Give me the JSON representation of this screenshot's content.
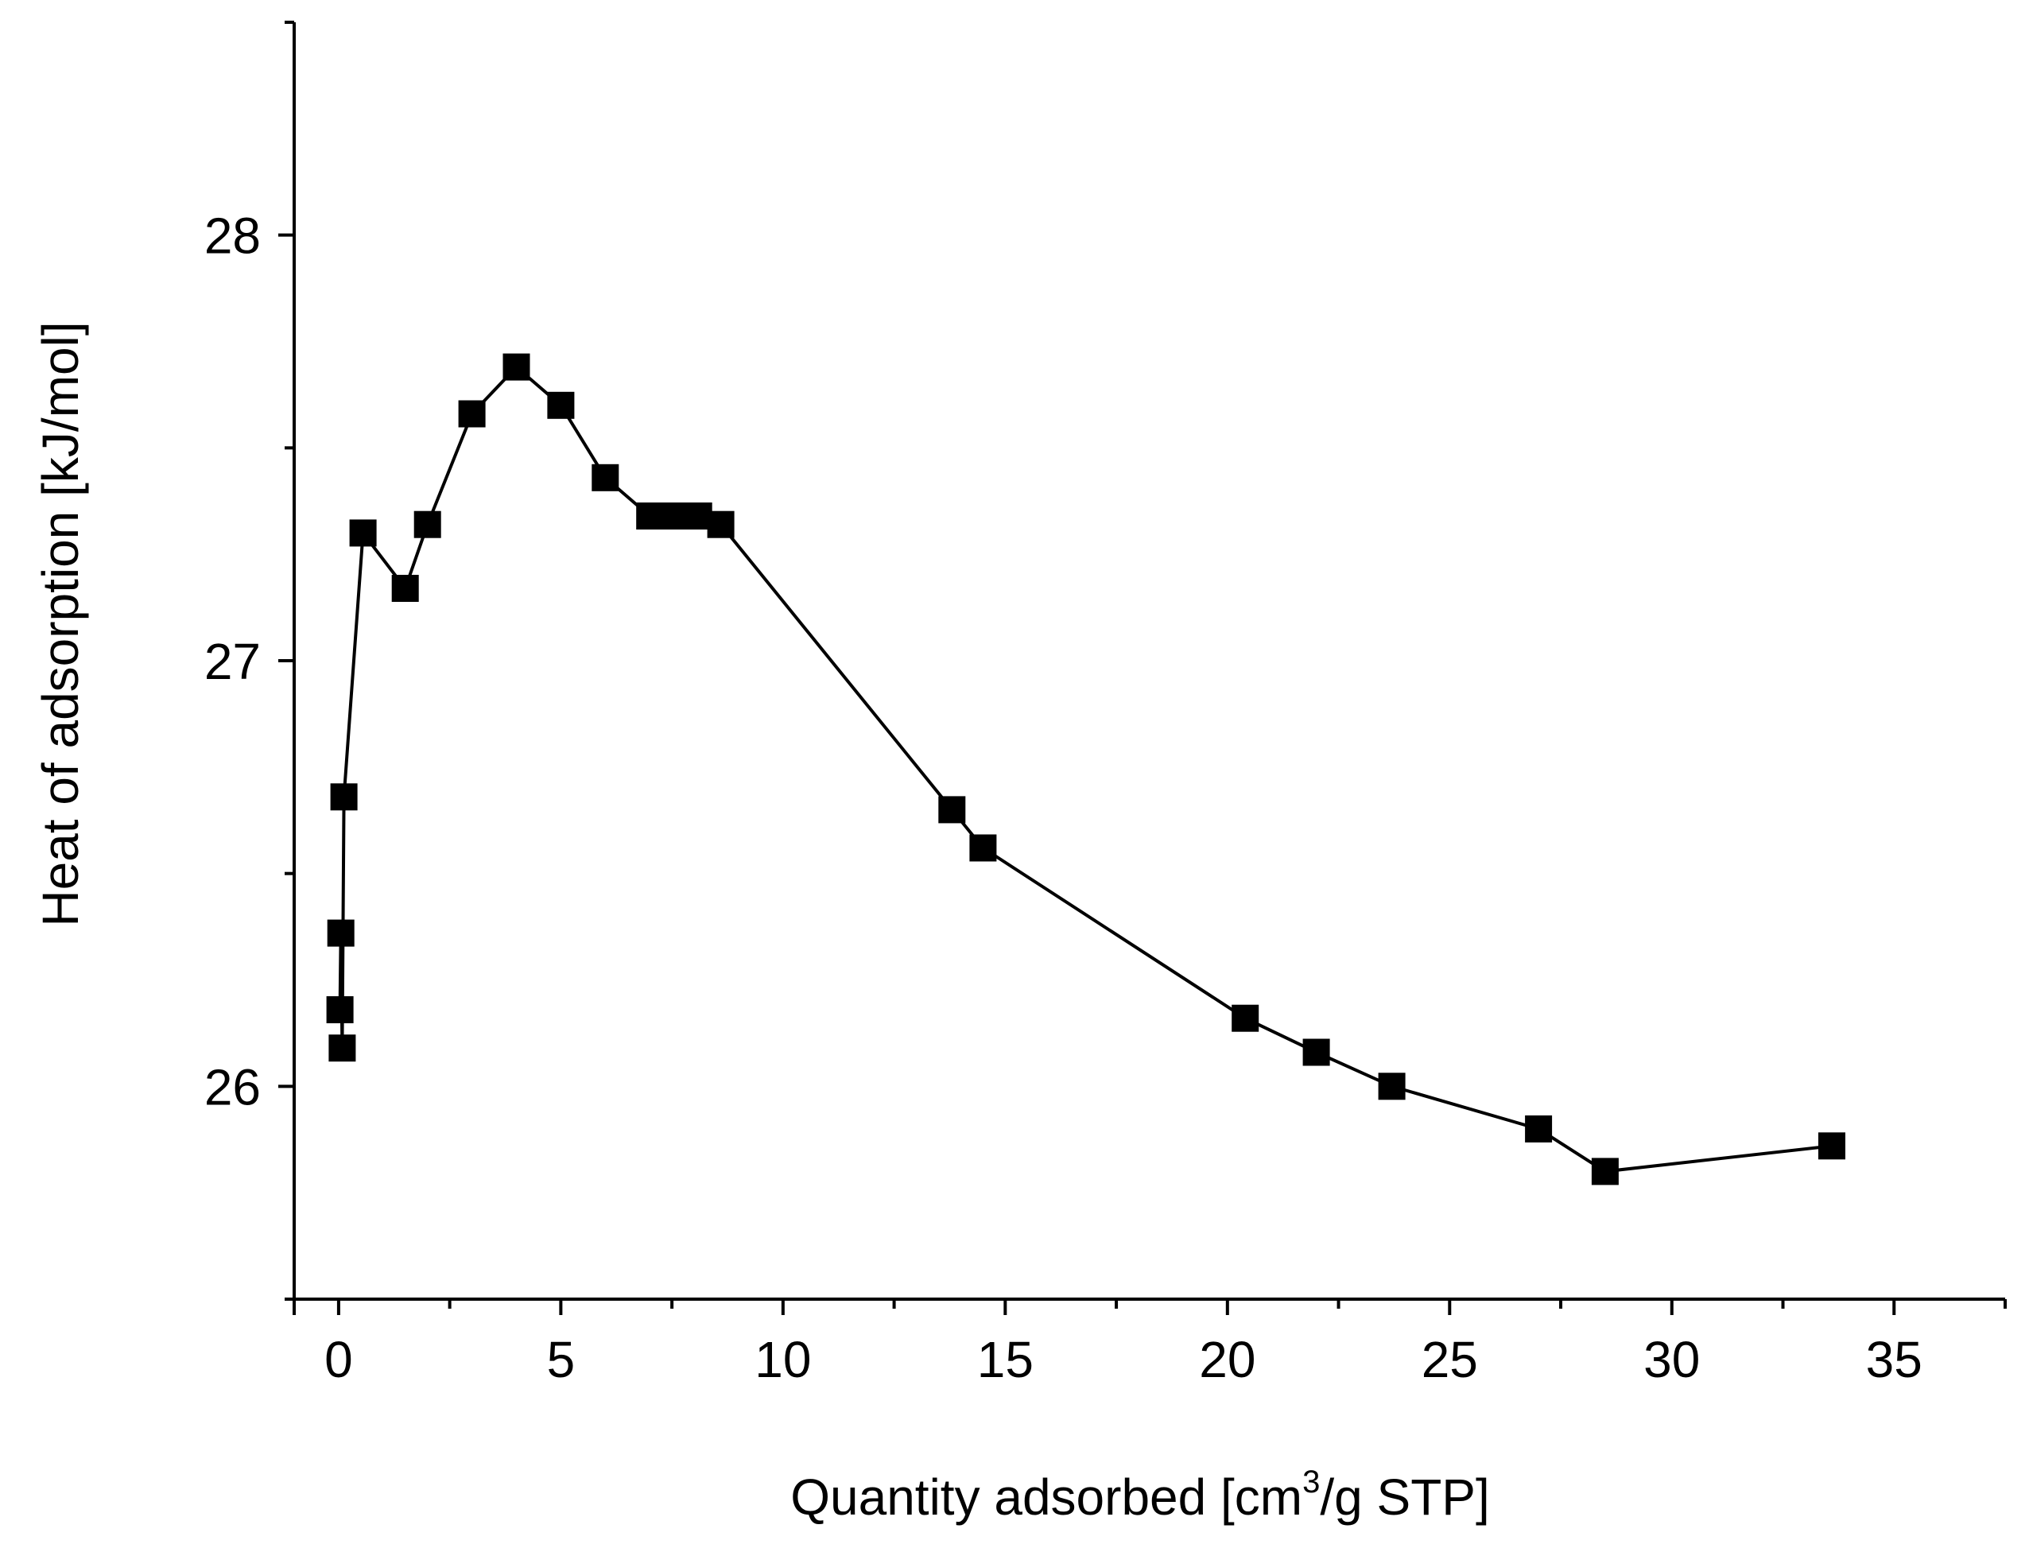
{
  "chart_data": {
    "type": "scatter",
    "title": "",
    "xlabel_main": "Quantity adsorbed [cm",
    "xlabel_sup": "3",
    "xlabel_end": "/g STP]",
    "ylabel": "Heat of adsorption [kJ/mol]",
    "xlim": [
      -1,
      37.5
    ],
    "ylim": [
      25.5,
      28.5
    ],
    "xticks": [
      0,
      5,
      10,
      15,
      20,
      25,
      30,
      35
    ],
    "yticks": [
      26,
      27,
      28
    ],
    "x_minor_step": 2.5,
    "y_minor_step": 0.5,
    "legend": "none",
    "grid": false,
    "series": [
      {
        "name": "Heat of adsorption",
        "marker": "square",
        "color": "#000000",
        "x": [
          0.03,
          0.05,
          0.08,
          0.12,
          0.55,
          1.5,
          2.0,
          3.0,
          4.0,
          5.0,
          6.0,
          7.0,
          7.3,
          7.8,
          8.1,
          8.6,
          13.8,
          14.5,
          20.4,
          22.0,
          23.7,
          27.0,
          28.5,
          33.6
        ],
        "y": [
          26.18,
          26.36,
          26.09,
          26.68,
          27.3,
          27.17,
          27.32,
          27.58,
          27.69,
          27.6,
          27.43,
          27.34,
          27.34,
          27.34,
          27.34,
          27.32,
          26.65,
          26.56,
          26.16,
          26.08,
          26.0,
          25.9,
          25.8,
          25.86
        ]
      }
    ]
  }
}
